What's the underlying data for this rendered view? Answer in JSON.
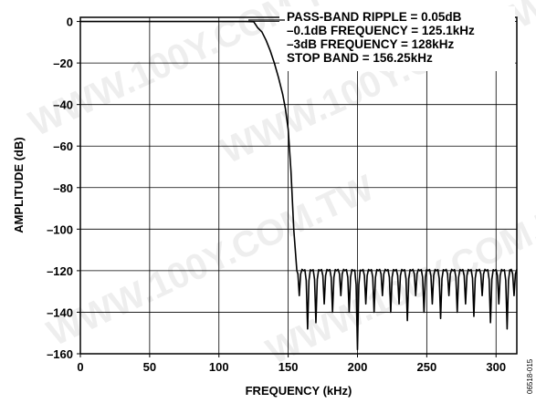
{
  "chart_data": {
    "type": "line",
    "xlabel": "FREQUENCY (kHz)",
    "ylabel": "AMPLITUDE (dB)",
    "xlim": [
      0,
      315
    ],
    "ylim": [
      -160,
      2
    ],
    "x_ticks": [
      0,
      50,
      100,
      150,
      200,
      250,
      300
    ],
    "x_tick_labels": [
      "0",
      "50",
      "100",
      "150",
      "200",
      "250",
      "300"
    ],
    "y_ticks": [
      0,
      -20,
      -40,
      -60,
      -80,
      -100,
      -120,
      -140,
      -160
    ],
    "y_tick_labels": [
      "0",
      "–20",
      "–40",
      "–60",
      "–80",
      "–100",
      "–120",
      "–140",
      "–160"
    ],
    "grid": true,
    "annotations": [
      "PASS-BAND RIPPLE = 0.05dB",
      "–0.1dB FREQUENCY = 125.1kHz",
      "–3dB FREQUENCY = 128kHz",
      "STOP BAND = 156.25kHz"
    ],
    "figure_id": "06518-015",
    "watermark": "WWW.100Y.COM.TW",
    "series": [
      {
        "color": "#000000",
        "pass_band": {
          "x": [
            0,
            120,
            125.1,
            128,
            131,
            134,
            137,
            140,
            143,
            146,
            148,
            150,
            152,
            154,
            156.25
          ],
          "y": [
            0,
            0,
            -0.1,
            -3,
            -5,
            -9,
            -14,
            -20,
            -27,
            -35,
            -42,
            -52,
            -72,
            -100,
            -120
          ]
        },
        "stop_band": {
          "level": -120,
          "range": [
            156.25,
            315
          ],
          "null_spacing": 5.9,
          "nulls": [
            {
              "x": 158,
              "y": -132
            },
            {
              "x": 164,
              "y": -148
            },
            {
              "x": 170,
              "y": -145
            },
            {
              "x": 176,
              "y": -136
            },
            {
              "x": 182,
              "y": -140
            },
            {
              "x": 188,
              "y": -132
            },
            {
              "x": 194,
              "y": -140
            },
            {
              "x": 200,
              "y": -158
            },
            {
              "x": 206,
              "y": -136
            },
            {
              "x": 212,
              "y": -140
            },
            {
              "x": 218,
              "y": -132
            },
            {
              "x": 224,
              "y": -140
            },
            {
              "x": 230,
              "y": -136
            },
            {
              "x": 236,
              "y": -144
            },
            {
              "x": 242,
              "y": -132
            },
            {
              "x": 248,
              "y": -140
            },
            {
              "x": 254,
              "y": -136
            },
            {
              "x": 260,
              "y": -143
            },
            {
              "x": 266,
              "y": -132
            },
            {
              "x": 272,
              "y": -140
            },
            {
              "x": 278,
              "y": -136
            },
            {
              "x": 284,
              "y": -142
            },
            {
              "x": 290,
              "y": -132
            },
            {
              "x": 296,
              "y": -145
            },
            {
              "x": 302,
              "y": -136
            },
            {
              "x": 308,
              "y": -148
            },
            {
              "x": 313,
              "y": -132
            }
          ]
        }
      }
    ]
  }
}
